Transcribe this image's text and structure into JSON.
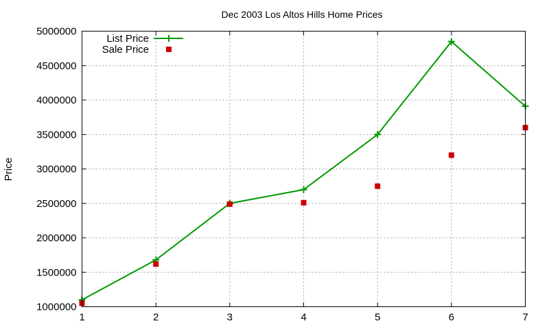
{
  "chart_data": {
    "type": "line",
    "title": "Dec 2003 Los Altos Hills Home Prices",
    "xlabel": "",
    "ylabel": "Price",
    "x": [
      1,
      2,
      3,
      4,
      5,
      6,
      7
    ],
    "xlim": [
      1,
      7
    ],
    "ylim": [
      1000000,
      5000000
    ],
    "xticks": [
      "1",
      "2",
      "3",
      "4",
      "5",
      "6",
      "7"
    ],
    "yticks": [
      "1000000",
      "1500000",
      "2000000",
      "2500000",
      "3000000",
      "3500000",
      "4000000",
      "4500000",
      "5000000"
    ],
    "grid": true,
    "legend_position": "top-left",
    "series": [
      {
        "name": "List Price",
        "style": "linespoints",
        "marker": "plus",
        "color": "#009900",
        "values": [
          1100000,
          1680000,
          2500000,
          2700000,
          3500000,
          4850000,
          3910000
        ]
      },
      {
        "name": "Sale Price",
        "style": "points",
        "marker": "square",
        "color": "#cc0000",
        "values": [
          1050000,
          1620000,
          2490000,
          2510000,
          2750000,
          3200000,
          3600000
        ]
      }
    ]
  }
}
